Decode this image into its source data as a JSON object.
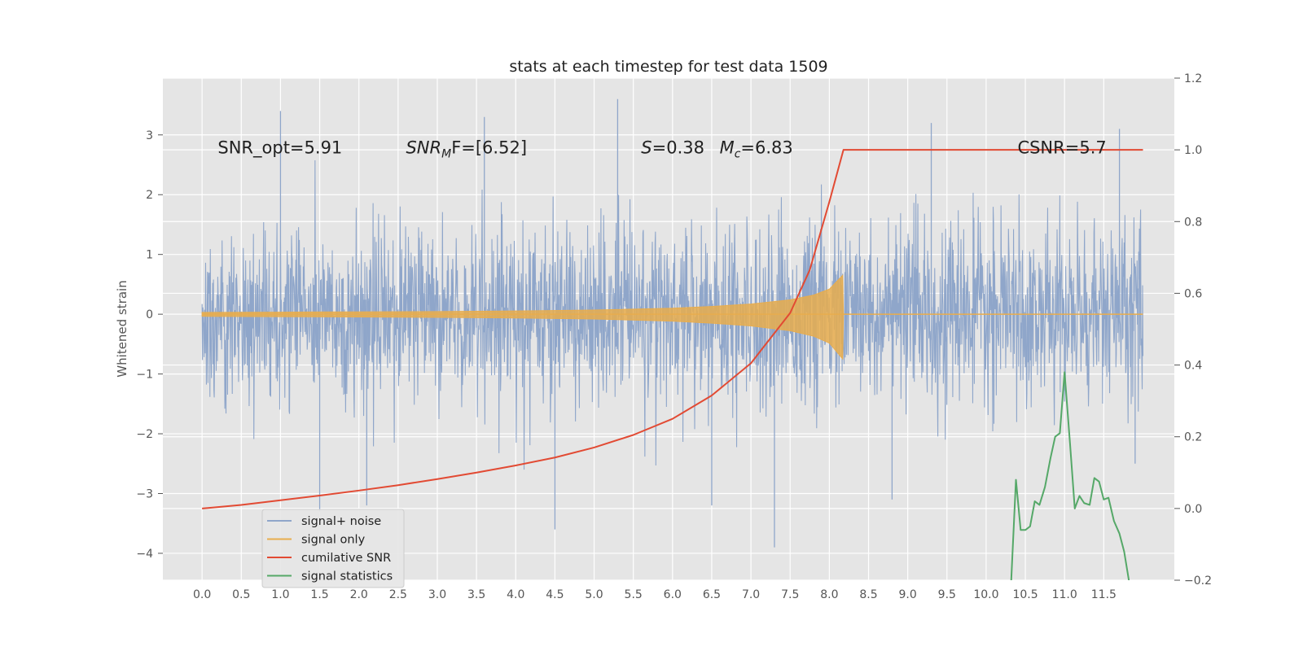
{
  "chart_data": {
    "type": "line",
    "title": "stats at each timestep for test data 1509",
    "ylabel": "Whitened strain",
    "xlabel": "",
    "xlim": [
      -0.5,
      12.4
    ],
    "ylim": [
      -4.45,
      3.95
    ],
    "y2lim": [
      -0.2,
      1.2
    ],
    "grid": true,
    "legend_position": "lower-left",
    "x_ticks": [
      "0.0",
      "0.5",
      "1.0",
      "1.5",
      "2.0",
      "2.5",
      "3.0",
      "3.5",
      "4.0",
      "4.5",
      "5.0",
      "5.5",
      "6.0",
      "6.5",
      "7.0",
      "7.5",
      "8.0",
      "8.5",
      "9.0",
      "9.5",
      "10.0",
      "10.5",
      "11.0",
      "11.5"
    ],
    "y_ticks": [
      "3",
      "2",
      "1",
      "0",
      "−1",
      "−2",
      "−3",
      "−4"
    ],
    "y2_ticks": [
      "1.2",
      "1.0",
      "0.8",
      "0.6",
      "0.4",
      "0.2",
      "0.0",
      "−0.2"
    ],
    "annotations": [
      {
        "text": "SNR_opt=5.91",
        "x": 0.2,
        "y": 2.8
      },
      {
        "text": "SNR",
        "sub": "M",
        "tail": "F=[6.52]",
        "italic": true,
        "x": 2.6,
        "y": 2.8
      },
      {
        "text": "S",
        "tail": "=0.38",
        "italic": true,
        "x": 5.6,
        "y": 2.8
      },
      {
        "text": "M",
        "sub": "c",
        "tail": "=6.83",
        "italic": true,
        "x": 6.6,
        "y": 2.8
      },
      {
        "text": "CSNR=5.7",
        "x": 10.4,
        "y": 2.8
      }
    ],
    "series": [
      {
        "name": "signal+ noise",
        "color": "#8fa6ca",
        "axis": "left",
        "x_range": [
          0.0,
          12.0
        ],
        "typical_range": [
          -1.6,
          1.6
        ],
        "spikes": [
          [
            1.0,
            3.4
          ],
          [
            3.6,
            3.3
          ],
          [
            5.3,
            3.6
          ],
          [
            9.3,
            3.2
          ],
          [
            11.7,
            3.1
          ],
          [
            4.5,
            -3.6
          ],
          [
            7.3,
            -3.9
          ],
          [
            1.5,
            -3.3
          ],
          [
            6.5,
            -3.2
          ],
          [
            2.1,
            -3.2
          ],
          [
            8.8,
            -3.1
          ],
          [
            11.9,
            -2.5
          ]
        ]
      },
      {
        "name": "signal only",
        "color": "#e8ad4e",
        "axis": "left",
        "x": [
          0.0,
          1.0,
          2.0,
          3.0,
          4.0,
          5.0,
          6.0,
          6.5,
          7.0,
          7.5,
          7.8,
          8.0,
          8.17,
          8.18,
          12.0
        ],
        "envelope": [
          0.03,
          0.035,
          0.04,
          0.045,
          0.055,
          0.07,
          0.1,
          0.13,
          0.17,
          0.24,
          0.32,
          0.42,
          0.65,
          0.0,
          0.0
        ]
      },
      {
        "name": "cumilative SNR",
        "color": "#e24a33",
        "axis": "right",
        "x": [
          0.0,
          0.5,
          1.0,
          1.5,
          2.0,
          2.5,
          3.0,
          3.5,
          4.0,
          4.5,
          5.0,
          5.5,
          6.0,
          6.5,
          7.0,
          7.5,
          7.75,
          8.0,
          8.18,
          12.0
        ],
        "y": [
          0.0,
          0.01,
          0.023,
          0.036,
          0.05,
          0.065,
          0.082,
          0.1,
          0.12,
          0.142,
          0.17,
          0.205,
          0.25,
          0.315,
          0.405,
          0.545,
          0.665,
          0.855,
          1.0,
          1.0
        ]
      },
      {
        "name": "signal statistics",
        "color": "#55a868",
        "axis": "right",
        "x": [
          10.32,
          10.38,
          10.44,
          10.5,
          10.56,
          10.62,
          10.68,
          10.75,
          10.82,
          10.88,
          10.94,
          11.0,
          11.07,
          11.13,
          11.19,
          11.25,
          11.32,
          11.38,
          11.44,
          11.5,
          11.56,
          11.63,
          11.7,
          11.76,
          11.82
        ],
        "y": [
          -0.2,
          0.08,
          -0.06,
          -0.06,
          -0.05,
          0.02,
          0.01,
          0.06,
          0.14,
          0.2,
          0.21,
          0.38,
          0.18,
          0.0,
          0.035,
          0.015,
          0.01,
          0.085,
          0.075,
          0.025,
          0.03,
          -0.035,
          -0.07,
          -0.12,
          -0.2
        ]
      }
    ]
  }
}
